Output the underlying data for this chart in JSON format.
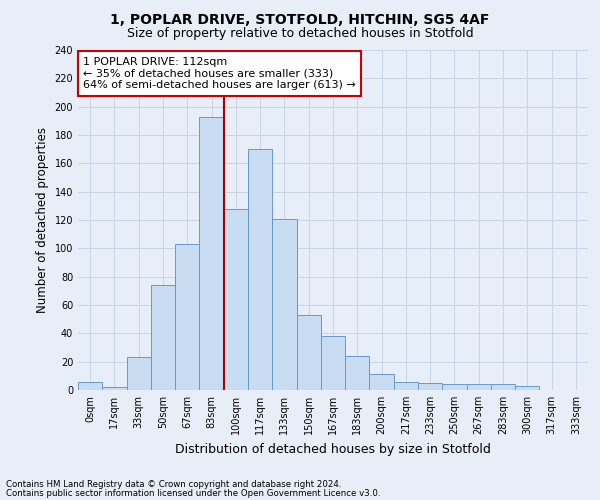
{
  "title_line1": "1, POPLAR DRIVE, STOTFOLD, HITCHIN, SG5 4AF",
  "title_line2": "Size of property relative to detached houses in Stotfold",
  "xlabel": "Distribution of detached houses by size in Stotfold",
  "ylabel": "Number of detached properties",
  "footnote1": "Contains HM Land Registry data © Crown copyright and database right 2024.",
  "footnote2": "Contains public sector information licensed under the Open Government Licence v3.0.",
  "bar_labels": [
    "0sqm",
    "17sqm",
    "33sqm",
    "50sqm",
    "67sqm",
    "83sqm",
    "100sqm",
    "117sqm",
    "133sqm",
    "150sqm",
    "167sqm",
    "183sqm",
    "200sqm",
    "217sqm",
    "233sqm",
    "250sqm",
    "267sqm",
    "283sqm",
    "300sqm",
    "317sqm",
    "333sqm"
  ],
  "bar_values": [
    6,
    2,
    23,
    74,
    103,
    193,
    128,
    170,
    121,
    53,
    38,
    24,
    11,
    6,
    5,
    4,
    4,
    4,
    3,
    0,
    0
  ],
  "bar_color": "#c9ddf2",
  "bar_edge_color": "#6699cc",
  "ylim": [
    0,
    240
  ],
  "yticks": [
    0,
    20,
    40,
    60,
    80,
    100,
    120,
    140,
    160,
    180,
    200,
    220,
    240
  ],
  "grid_color": "#c8d4e8",
  "background_color": "#e8eef8",
  "vline_x_index": 5.5,
  "vline_color": "#aa0000",
  "annotation_text": "1 POPLAR DRIVE: 112sqm\n← 35% of detached houses are smaller (333)\n64% of semi-detached houses are larger (613) →",
  "annotation_box_color": "#ffffff",
  "annotation_box_edge": "#cc0000",
  "title_fontsize": 10,
  "subtitle_fontsize": 9
}
